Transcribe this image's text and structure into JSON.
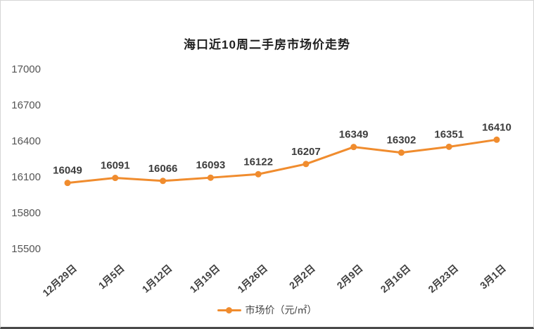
{
  "chart_data": {
    "type": "line",
    "title": "海口近10周二手房市场价走势",
    "categories": [
      "12月29日",
      "1月5日",
      "1月12日",
      "1月19日",
      "1月26日",
      "2月2日",
      "2月9日",
      "2月16日",
      "2月23日",
      "3月1日"
    ],
    "values": [
      16049,
      16091,
      16066,
      16093,
      16122,
      16207,
      16349,
      16302,
      16351,
      16410
    ],
    "y_ticks": [
      17000,
      16700,
      16400,
      16100,
      15800,
      15500
    ],
    "ylim": [
      15500,
      17000
    ],
    "legend": "市场价（元/㎡）",
    "line_color": "#f08c2e",
    "marker_color": "#f08c2e",
    "label_color": "#3d3d3d",
    "axis_label_color": "#555555",
    "grid": false,
    "legend_position": "bottom"
  }
}
